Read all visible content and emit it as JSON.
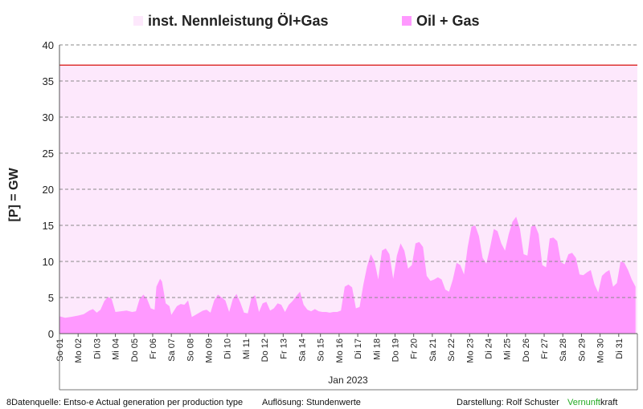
{
  "chart_data": {
    "type": "area",
    "ylabel": "[P]  = GW",
    "xlabel": "Jan 2023",
    "ylim": [
      0,
      40
    ],
    "yticks": [
      0,
      5,
      10,
      15,
      20,
      25,
      30,
      35,
      40
    ],
    "grid": "horizontal dashed",
    "legend_position": "top",
    "x_tick_labels": [
      "So 01",
      "Mo 02",
      "Di 03",
      "Mi 04",
      "Do 05",
      "Fr 06",
      "Sa 07",
      "So 08",
      "Mo 09",
      "Di 10",
      "Mi 11",
      "Do 12",
      "Fr 13",
      "Sa 14",
      "So 15",
      "Mo 16",
      "Di 17",
      "Mi 18",
      "Do 19",
      "Fr 20",
      "Sa 21",
      "So 22",
      "Mo 23",
      "Di 24",
      "Mi 25",
      "Do 26",
      "Fr 27",
      "Sa 28",
      "So 29",
      "Mo 30",
      "Di 31"
    ],
    "x_unit": "day of January 2023",
    "series": [
      {
        "name": "inst. Nennleistung Öl+Gas",
        "kind": "band",
        "color": "#fde8fc",
        "line_color": "#dd3333",
        "value": 37.2
      },
      {
        "name": "Oil + Gas",
        "kind": "area",
        "color": "#ff99ff",
        "points": [
          [
            1.0,
            2.4
          ],
          [
            1.3,
            2.2
          ],
          [
            1.6,
            2.3
          ],
          [
            2.0,
            2.5
          ],
          [
            2.3,
            2.7
          ],
          [
            2.6,
            3.2
          ],
          [
            2.8,
            3.4
          ],
          [
            3.0,
            2.9
          ],
          [
            3.2,
            3.3
          ],
          [
            3.4,
            4.5
          ],
          [
            3.6,
            5.1
          ],
          [
            3.8,
            4.8
          ],
          [
            4.0,
            3.0
          ],
          [
            4.3,
            3.1
          ],
          [
            4.6,
            3.2
          ],
          [
            4.9,
            3.0
          ],
          [
            5.1,
            3.1
          ],
          [
            5.3,
            4.8
          ],
          [
            5.5,
            5.4
          ],
          [
            5.7,
            4.8
          ],
          [
            5.9,
            3.5
          ],
          [
            6.1,
            3.3
          ],
          [
            6.2,
            6.5
          ],
          [
            6.4,
            7.6
          ],
          [
            6.5,
            7.2
          ],
          [
            6.7,
            4.2
          ],
          [
            6.9,
            3.8
          ],
          [
            7.0,
            2.6
          ],
          [
            7.3,
            3.8
          ],
          [
            7.5,
            4.1
          ],
          [
            7.7,
            4.0
          ],
          [
            7.9,
            4.6
          ],
          [
            8.1,
            2.3
          ],
          [
            8.3,
            2.6
          ],
          [
            8.5,
            2.9
          ],
          [
            8.7,
            3.2
          ],
          [
            8.9,
            3.3
          ],
          [
            9.1,
            2.9
          ],
          [
            9.3,
            4.6
          ],
          [
            9.5,
            5.4
          ],
          [
            9.7,
            5.0
          ],
          [
            9.9,
            4.6
          ],
          [
            10.1,
            3.0
          ],
          [
            10.3,
            4.8
          ],
          [
            10.5,
            5.5
          ],
          [
            10.7,
            4.3
          ],
          [
            10.9,
            2.9
          ],
          [
            11.1,
            2.8
          ],
          [
            11.3,
            5.0
          ],
          [
            11.5,
            5.3
          ],
          [
            11.7,
            3.0
          ],
          [
            11.9,
            4.2
          ],
          [
            12.1,
            4.4
          ],
          [
            12.3,
            3.2
          ],
          [
            12.5,
            3.5
          ],
          [
            12.7,
            4.2
          ],
          [
            12.9,
            4.0
          ],
          [
            13.1,
            3.0
          ],
          [
            13.3,
            4.0
          ],
          [
            13.5,
            4.5
          ],
          [
            13.7,
            5.2
          ],
          [
            13.9,
            5.8
          ],
          [
            14.1,
            4.0
          ],
          [
            14.3,
            3.3
          ],
          [
            14.5,
            3.1
          ],
          [
            14.7,
            3.4
          ],
          [
            14.9,
            3.1
          ],
          [
            15.1,
            3.0
          ],
          [
            15.3,
            3.0
          ],
          [
            15.5,
            2.9
          ],
          [
            15.7,
            3.0
          ],
          [
            15.9,
            3.0
          ],
          [
            16.1,
            3.2
          ],
          [
            16.3,
            6.5
          ],
          [
            16.5,
            6.8
          ],
          [
            16.7,
            6.4
          ],
          [
            16.9,
            3.5
          ],
          [
            17.1,
            3.7
          ],
          [
            17.3,
            6.8
          ],
          [
            17.5,
            9.3
          ],
          [
            17.7,
            11.0
          ],
          [
            17.9,
            10.0
          ],
          [
            18.1,
            7.5
          ],
          [
            18.3,
            11.5
          ],
          [
            18.5,
            11.8
          ],
          [
            18.7,
            11.0
          ],
          [
            18.9,
            7.6
          ],
          [
            19.1,
            10.8
          ],
          [
            19.3,
            12.5
          ],
          [
            19.5,
            11.5
          ],
          [
            19.7,
            9.0
          ],
          [
            19.9,
            9.5
          ],
          [
            20.1,
            12.5
          ],
          [
            20.3,
            12.7
          ],
          [
            20.5,
            12.0
          ],
          [
            20.7,
            8.0
          ],
          [
            20.9,
            7.3
          ],
          [
            21.1,
            7.5
          ],
          [
            21.3,
            7.8
          ],
          [
            21.5,
            7.5
          ],
          [
            21.7,
            6.1
          ],
          [
            21.9,
            5.8
          ],
          [
            22.1,
            7.5
          ],
          [
            22.3,
            9.8
          ],
          [
            22.5,
            9.5
          ],
          [
            22.7,
            8.2
          ],
          [
            22.9,
            12.0
          ],
          [
            23.1,
            14.8
          ],
          [
            23.3,
            15.0
          ],
          [
            23.5,
            13.5
          ],
          [
            23.7,
            10.5
          ],
          [
            23.9,
            9.7
          ],
          [
            24.1,
            12.0
          ],
          [
            24.3,
            14.5
          ],
          [
            24.5,
            14.2
          ],
          [
            24.7,
            12.5
          ],
          [
            24.9,
            11.5
          ],
          [
            25.1,
            13.8
          ],
          [
            25.3,
            15.5
          ],
          [
            25.5,
            16.2
          ],
          [
            25.7,
            14.5
          ],
          [
            25.9,
            11.0
          ],
          [
            26.1,
            10.8
          ],
          [
            26.3,
            14.8
          ],
          [
            26.5,
            15.1
          ],
          [
            26.7,
            13.8
          ],
          [
            26.9,
            9.5
          ],
          [
            27.1,
            9.2
          ],
          [
            27.3,
            13.2
          ],
          [
            27.5,
            13.3
          ],
          [
            27.7,
            12.8
          ],
          [
            27.9,
            9.9
          ],
          [
            28.1,
            9.6
          ],
          [
            28.3,
            11.0
          ],
          [
            28.5,
            11.2
          ],
          [
            28.7,
            10.5
          ],
          [
            28.9,
            8.2
          ],
          [
            29.1,
            8.1
          ],
          [
            29.3,
            8.5
          ],
          [
            29.5,
            8.8
          ],
          [
            29.7,
            6.8
          ],
          [
            29.9,
            5.7
          ],
          [
            30.1,
            8.0
          ],
          [
            30.3,
            8.5
          ],
          [
            30.5,
            8.8
          ],
          [
            30.7,
            6.5
          ],
          [
            30.9,
            7.0
          ],
          [
            31.1,
            10.0
          ],
          [
            31.3,
            9.8
          ],
          [
            31.5,
            8.8
          ],
          [
            31.7,
            7.5
          ],
          [
            31.9,
            6.5
          ]
        ]
      }
    ]
  },
  "footer": {
    "source": "8Datenquelle: Entso-e  Actual generation per production type",
    "resolution": "Auflösung: Stundenwerte",
    "author_label": "Darstellung:  Rolf Schuster",
    "brand_part1": "Vernunft",
    "brand_part2": "kraft"
  }
}
